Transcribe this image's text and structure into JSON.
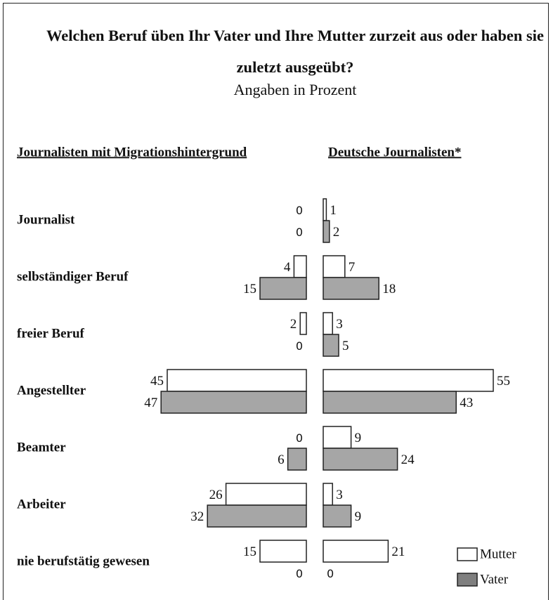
{
  "chart_data": {
    "type": "bar",
    "title": "Welchen Beruf üben Ihr Vater und Ihre Mutter zurzeit aus oder haben sie zuletzt ausgeübt?",
    "subtitle": "Angaben in Prozent",
    "panels": [
      "Journalisten mit Migrationshintergrund",
      "Deutsche Journalisten*"
    ],
    "categories": [
      "Journalist",
      "selbständiger Beruf",
      "freier Beruf",
      "Angestellter",
      "Beamter",
      "Arbeiter",
      "nie berufstätig gewesen"
    ],
    "series": [
      {
        "name": "Mutter",
        "color": "#ffffff",
        "values": [
          [
            0,
            4,
            2,
            45,
            0,
            26,
            15
          ],
          [
            1,
            7,
            3,
            55,
            9,
            3,
            21
          ]
        ]
      },
      {
        "name": "Vater",
        "color": "#a6a6a6",
        "values": [
          [
            0,
            15,
            0,
            47,
            6,
            32,
            0
          ],
          [
            2,
            18,
            5,
            43,
            24,
            9,
            0
          ]
        ]
      }
    ]
  }
}
